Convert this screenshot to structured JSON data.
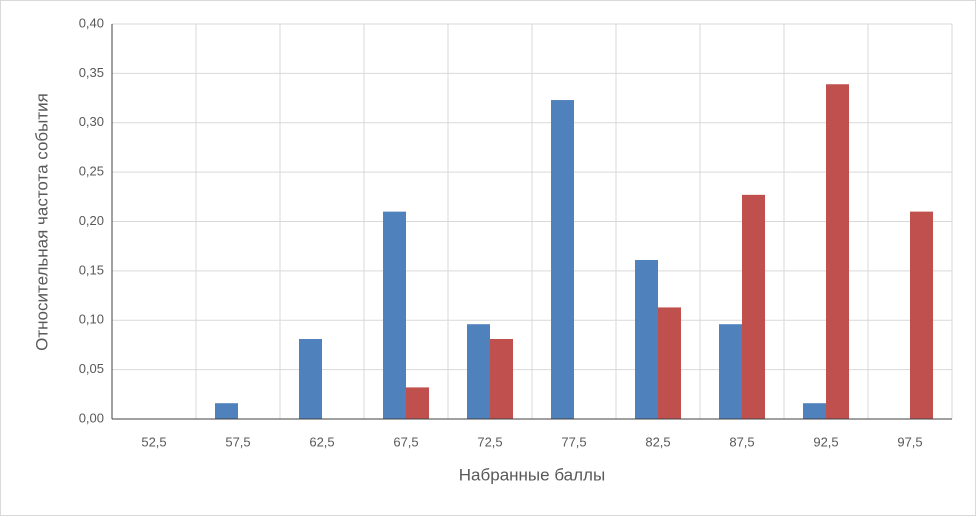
{
  "chart_data": {
    "type": "bar",
    "x_label": "Набранные баллы",
    "y_label": "Относительная частота события",
    "categories": [
      "52,5",
      "57,5",
      "62,5",
      "67,5",
      "72,5",
      "77,5",
      "82,5",
      "87,5",
      "92,5",
      "97,5"
    ],
    "series": [
      {
        "color": "#4f81bd",
        "values": [
          0,
          0.016,
          0.081,
          0.21,
          0.096,
          0.323,
          0.161,
          0.096,
          0.016,
          0
        ]
      },
      {
        "color": "#c0504d",
        "values": [
          0,
          0,
          0,
          0.032,
          0.081,
          0,
          0.113,
          0.227,
          0.339,
          0.21
        ]
      }
    ],
    "ylim": [
      0,
      0.4
    ],
    "yticks": [
      {
        "value": 0,
        "label": "0,00"
      },
      {
        "value": 0.05,
        "label": "0,05"
      },
      {
        "value": 0.1,
        "label": "0,10"
      },
      {
        "value": 0.15,
        "label": "0,15"
      },
      {
        "value": 0.2,
        "label": "0,20"
      },
      {
        "value": 0.25,
        "label": "0,25"
      },
      {
        "value": 0.3,
        "label": "0,30"
      },
      {
        "value": 0.35,
        "label": "0,35"
      },
      {
        "value": 0.4,
        "label": "0,40"
      }
    ],
    "grid": true
  }
}
